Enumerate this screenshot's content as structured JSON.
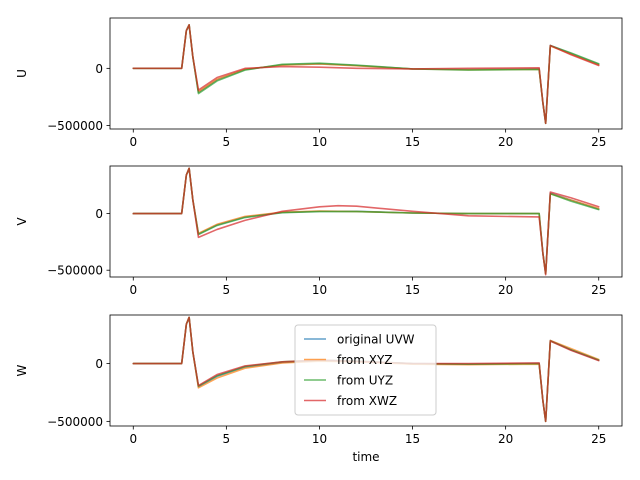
{
  "chart_data": [
    {
      "type": "line",
      "ylabel": "U",
      "xlabel": "",
      "xlim": [
        -1.25,
        26.25
      ],
      "ylim": [
        -530000,
        440000
      ],
      "xticks": [
        0,
        5,
        10,
        15,
        20,
        25
      ],
      "yticks": [
        -500000,
        0
      ],
      "ytick_labels": [
        "−500000",
        "0"
      ],
      "legend": false,
      "series": [
        {
          "name": "original UVW",
          "color": "#1f77b4",
          "x": [
            0,
            2.6,
            2.85,
            3.0,
            3.2,
            3.5,
            4.5,
            6.0,
            8.0,
            10.0,
            12.0,
            15.0,
            18.0,
            21.8,
            22.0,
            22.15,
            22.4,
            23.5,
            25.0
          ],
          "y": [
            0,
            0,
            330000,
            380000,
            100000,
            -210000,
            -100000,
            -10000,
            30000,
            40000,
            25000,
            -5000,
            -10000,
            -5000,
            -300000,
            -480000,
            200000,
            130000,
            35000
          ]
        },
        {
          "name": "from XYZ",
          "color": "#ff7f0e",
          "x": [
            0,
            2.6,
            2.85,
            3.0,
            3.2,
            3.5,
            4.5,
            6.0,
            8.0,
            10.0,
            12.0,
            15.0,
            18.0,
            21.8,
            22.0,
            22.15,
            22.4,
            23.5,
            25.0
          ],
          "y": [
            0,
            0,
            330000,
            380000,
            100000,
            -205000,
            -95000,
            -8000,
            28000,
            38000,
            22000,
            -5000,
            -12000,
            -8000,
            -300000,
            -480000,
            195000,
            125000,
            30000
          ]
        },
        {
          "name": "from UYZ",
          "color": "#2ca02c",
          "x": [
            0,
            2.6,
            2.85,
            3.0,
            3.2,
            3.5,
            4.5,
            6.0,
            8.0,
            10.0,
            12.0,
            15.0,
            18.0,
            21.8,
            22.0,
            22.15,
            22.4,
            23.5,
            25.0
          ],
          "y": [
            0,
            0,
            330000,
            380000,
            100000,
            -220000,
            -110000,
            -15000,
            35000,
            45000,
            28000,
            -5000,
            -15000,
            -10000,
            -300000,
            -480000,
            200000,
            135000,
            40000
          ]
        },
        {
          "name": "from XWZ",
          "color": "#d62728",
          "x": [
            0,
            2.6,
            2.85,
            3.0,
            3.2,
            3.5,
            4.5,
            6.0,
            8.0,
            10.0,
            12.0,
            15.0,
            18.0,
            21.8,
            22.0,
            22.15,
            22.4,
            23.5,
            25.0
          ],
          "y": [
            0,
            0,
            330000,
            380000,
            100000,
            -190000,
            -80000,
            0,
            15000,
            10000,
            0,
            -5000,
            0,
            5000,
            -300000,
            -480000,
            200000,
            120000,
            25000
          ]
        }
      ]
    },
    {
      "type": "line",
      "ylabel": "V",
      "xlabel": "",
      "xlim": [
        -1.25,
        26.25
      ],
      "ylim": [
        -560000,
        420000
      ],
      "xticks": [
        0,
        5,
        10,
        15,
        20,
        25
      ],
      "yticks": [
        -500000,
        0
      ],
      "ytick_labels": [
        "−500000",
        "0"
      ],
      "legend": false,
      "series": [
        {
          "name": "original UVW",
          "color": "#1f77b4",
          "x": [
            0,
            2.6,
            2.85,
            3.0,
            3.2,
            3.5,
            4.5,
            6.0,
            8.0,
            10.0,
            12.0,
            15.0,
            18.0,
            21.8,
            22.0,
            22.15,
            22.4,
            23.5,
            25.0
          ],
          "y": [
            0,
            0,
            340000,
            400000,
            120000,
            -180000,
            -100000,
            -30000,
            10000,
            20000,
            20000,
            5000,
            0,
            0,
            -350000,
            -530000,
            180000,
            120000,
            40000
          ]
        },
        {
          "name": "from XYZ",
          "color": "#ff7f0e",
          "x": [
            0,
            2.6,
            2.85,
            3.0,
            3.2,
            3.5,
            4.5,
            6.0,
            8.0,
            10.0,
            12.0,
            15.0,
            18.0,
            21.8,
            22.0,
            22.15,
            22.4,
            23.5,
            25.0
          ],
          "y": [
            0,
            0,
            340000,
            400000,
            120000,
            -175000,
            -95000,
            -25000,
            12000,
            22000,
            18000,
            5000,
            0,
            0,
            -350000,
            -530000,
            175000,
            120000,
            45000
          ]
        },
        {
          "name": "from UYZ",
          "color": "#2ca02c",
          "x": [
            0,
            2.6,
            2.85,
            3.0,
            3.2,
            3.5,
            4.5,
            6.0,
            8.0,
            10.0,
            12.0,
            15.0,
            18.0,
            21.8,
            22.0,
            22.15,
            22.4,
            23.5,
            25.0
          ],
          "y": [
            0,
            0,
            340000,
            400000,
            120000,
            -185000,
            -105000,
            -35000,
            8000,
            18000,
            18000,
            5000,
            0,
            0,
            -350000,
            -530000,
            175000,
            110000,
            35000
          ]
        },
        {
          "name": "from XWZ",
          "color": "#d62728",
          "x": [
            0,
            2.6,
            2.85,
            3.0,
            3.2,
            3.5,
            4.5,
            6.0,
            8.0,
            10.0,
            11.0,
            12.0,
            15.0,
            18.0,
            21.8,
            22.0,
            22.15,
            22.4,
            23.5,
            25.0
          ],
          "y": [
            0,
            0,
            340000,
            400000,
            120000,
            -210000,
            -140000,
            -60000,
            20000,
            60000,
            70000,
            65000,
            20000,
            -20000,
            -30000,
            -350000,
            -540000,
            190000,
            140000,
            60000
          ]
        }
      ]
    },
    {
      "type": "line",
      "ylabel": "W",
      "xlabel": "time",
      "xlim": [
        -1.25,
        26.25
      ],
      "ylim": [
        -540000,
        420000
      ],
      "xticks": [
        0,
        5,
        10,
        15,
        20,
        25
      ],
      "yticks": [
        -500000,
        0
      ],
      "ytick_labels": [
        "−500000",
        "0"
      ],
      "legend": true,
      "legend_position": "center",
      "series": [
        {
          "name": "original UVW",
          "color": "#1f77b4",
          "x": [
            0,
            2.6,
            2.85,
            3.0,
            3.2,
            3.5,
            4.5,
            6.0,
            8.0,
            10.0,
            12.0,
            15.0,
            18.0,
            21.8,
            22.0,
            22.15,
            22.4,
            23.5,
            25.0
          ],
          "y": [
            0,
            0,
            340000,
            400000,
            100000,
            -200000,
            -110000,
            -30000,
            10000,
            25000,
            20000,
            0,
            -5000,
            0,
            -320000,
            -500000,
            200000,
            120000,
            30000
          ]
        },
        {
          "name": "from XYZ",
          "color": "#ff7f0e",
          "x": [
            0,
            2.6,
            2.85,
            3.0,
            3.2,
            3.5,
            4.5,
            6.0,
            8.0,
            10.0,
            12.0,
            15.0,
            18.0,
            21.8,
            22.0,
            22.15,
            22.4,
            23.5,
            25.0
          ],
          "y": [
            0,
            0,
            340000,
            400000,
            100000,
            -210000,
            -125000,
            -40000,
            5000,
            20000,
            15000,
            -5000,
            -10000,
            -5000,
            -320000,
            -500000,
            200000,
            130000,
            35000
          ]
        },
        {
          "name": "from UYZ",
          "color": "#2ca02c",
          "x": [
            0,
            2.6,
            2.85,
            3.0,
            3.2,
            3.5,
            4.5,
            6.0,
            8.0,
            10.0,
            12.0,
            15.0,
            18.0,
            21.8,
            22.0,
            22.15,
            22.4,
            23.5,
            25.0
          ],
          "y": [
            0,
            0,
            340000,
            400000,
            100000,
            -195000,
            -105000,
            -25000,
            15000,
            30000,
            22000,
            0,
            -5000,
            0,
            -320000,
            -500000,
            195000,
            120000,
            30000
          ]
        },
        {
          "name": "from XWZ",
          "color": "#d62728",
          "x": [
            0,
            2.6,
            2.85,
            3.0,
            3.2,
            3.5,
            4.5,
            6.0,
            8.0,
            10.0,
            12.0,
            15.0,
            18.0,
            21.8,
            22.0,
            22.15,
            22.4,
            23.5,
            25.0
          ],
          "y": [
            0,
            0,
            340000,
            400000,
            100000,
            -190000,
            -95000,
            -20000,
            15000,
            30000,
            20000,
            0,
            0,
            5000,
            -320000,
            -500000,
            195000,
            115000,
            25000
          ]
        }
      ]
    }
  ],
  "legend": {
    "entries": [
      "original UVW",
      "from XYZ",
      "from UYZ",
      "from XWZ"
    ],
    "colors": [
      "#1f77b4",
      "#ff7f0e",
      "#2ca02c",
      "#d62728"
    ]
  }
}
